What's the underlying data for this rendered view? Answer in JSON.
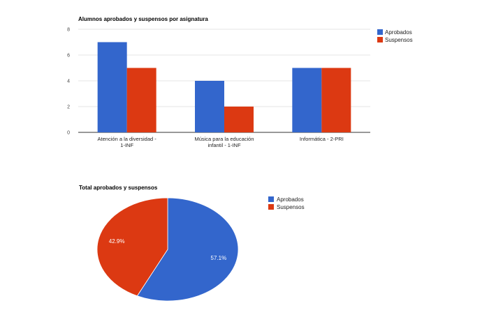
{
  "chart_data": [
    {
      "type": "bar",
      "title": "Alumnos aprobados y suspensos por asignatura",
      "categories": [
        [
          "Atención a la diversidad -",
          "1-INF"
        ],
        [
          "Música para la educación",
          "infantil - 1-INF"
        ],
        [
          "Informática - 2-PRI"
        ]
      ],
      "series": [
        {
          "name": "Aprobados",
          "values": [
            7,
            4,
            5
          ],
          "color": "#3366cc"
        },
        {
          "name": "Suspensos",
          "values": [
            5,
            2,
            5
          ],
          "color": "#dc3912"
        }
      ],
      "ylim": [
        0,
        8
      ],
      "yticks": [
        "0",
        "2",
        "4",
        "6",
        "8"
      ],
      "grid": true,
      "legend_position": "right"
    },
    {
      "type": "pie",
      "title": "Total aprobados y suspensos",
      "slices": [
        {
          "name": "Aprobados",
          "value": 57.1,
          "label": "57.1%",
          "color": "#3366cc"
        },
        {
          "name": "Suspensos",
          "value": 42.9,
          "label": "42.9%",
          "color": "#dc3912"
        }
      ],
      "legend_position": "right"
    }
  ]
}
